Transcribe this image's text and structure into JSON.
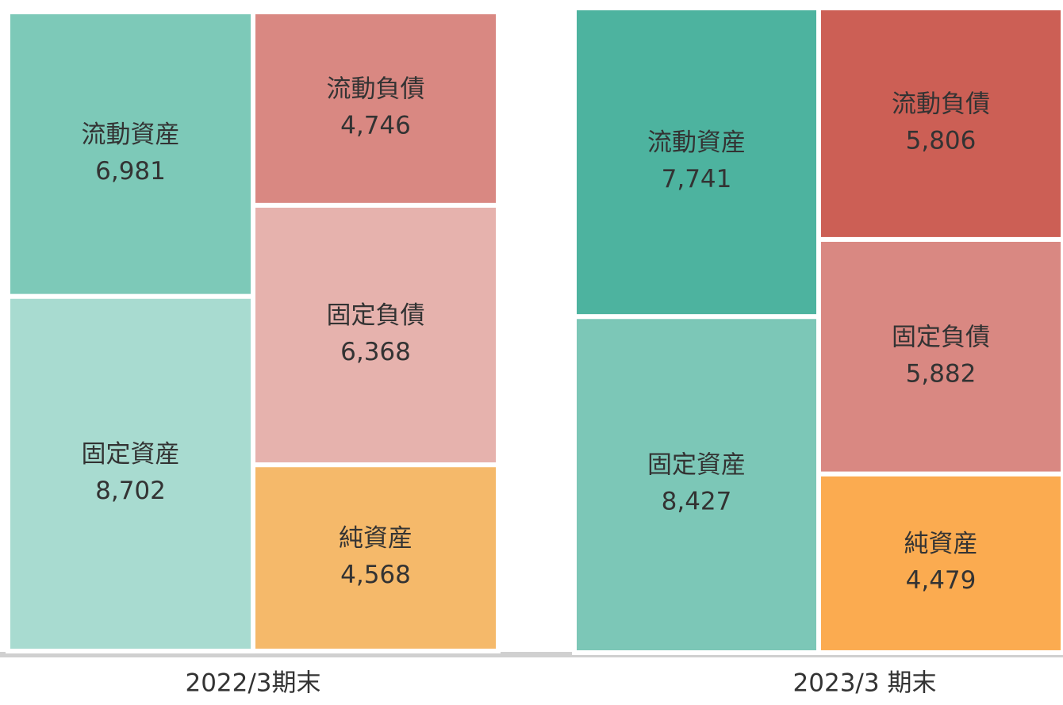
{
  "chart_data": [
    {
      "type": "balance",
      "title": "2022/3期末",
      "columns": [
        [
          {
            "name": "流動資産",
            "value": 6981,
            "value_label": "6,981",
            "color": "#7dc9b8"
          },
          {
            "name": "固定資産",
            "value": 8702,
            "value_label": "8,702",
            "color": "#a8dbd0"
          }
        ],
        [
          {
            "name": "流動負債",
            "value": 4746,
            "value_label": "4,746",
            "color": "#d98882"
          },
          {
            "name": "固定負債",
            "value": 6368,
            "value_label": "6,368",
            "color": "#e6b2ad"
          },
          {
            "name": "純資産",
            "value": 4568,
            "value_label": "4,568",
            "color": "#f5b96a"
          }
        ]
      ]
    },
    {
      "type": "balance",
      "title": "2023/3 期末",
      "columns": [
        [
          {
            "name": "流動資産",
            "value": 7741,
            "value_label": "7,741",
            "color": "#4db39f"
          },
          {
            "name": "固定資産",
            "value": 8427,
            "value_label": "8,427",
            "color": "#7cc7b7"
          }
        ],
        [
          {
            "name": "流動負債",
            "value": 5806,
            "value_label": "5,806",
            "color": "#cc5f55"
          },
          {
            "name": "固定負債",
            "value": 5882,
            "value_label": "5,882",
            "color": "#d98882"
          },
          {
            "name": "純資産",
            "value": 4479,
            "value_label": "4,479",
            "color": "#fbab50"
          }
        ]
      ]
    }
  ]
}
